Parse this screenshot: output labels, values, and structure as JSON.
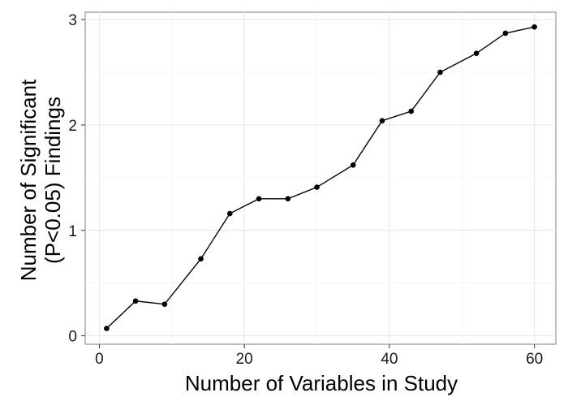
{
  "chart_data": {
    "type": "line",
    "title": "",
    "xlabel": "Number of Variables in Study",
    "ylabel_lines": [
      "Number of Significant",
      "(P<0.05) Findings"
    ],
    "xlim": [
      -1.95,
      62.95
    ],
    "ylim": [
      -0.08,
      3.07
    ],
    "x_ticks": [
      0,
      20,
      40,
      60
    ],
    "y_ticks": [
      0,
      1,
      2,
      3
    ],
    "x_minor": [
      10,
      30,
      50
    ],
    "y_minor": [
      0.5,
      1.5,
      2.5
    ],
    "grid": true,
    "legend": "none",
    "series": [
      {
        "color": "#000000",
        "x": [
          1,
          5,
          9,
          14,
          18,
          22,
          26,
          30,
          35,
          39,
          43,
          47,
          52,
          56,
          60
        ],
        "y": [
          0.07,
          0.33,
          0.3,
          0.73,
          1.16,
          1.3,
          1.3,
          1.41,
          1.62,
          2.04,
          2.13,
          2.5,
          2.68,
          2.87,
          2.93
        ]
      }
    ]
  }
}
